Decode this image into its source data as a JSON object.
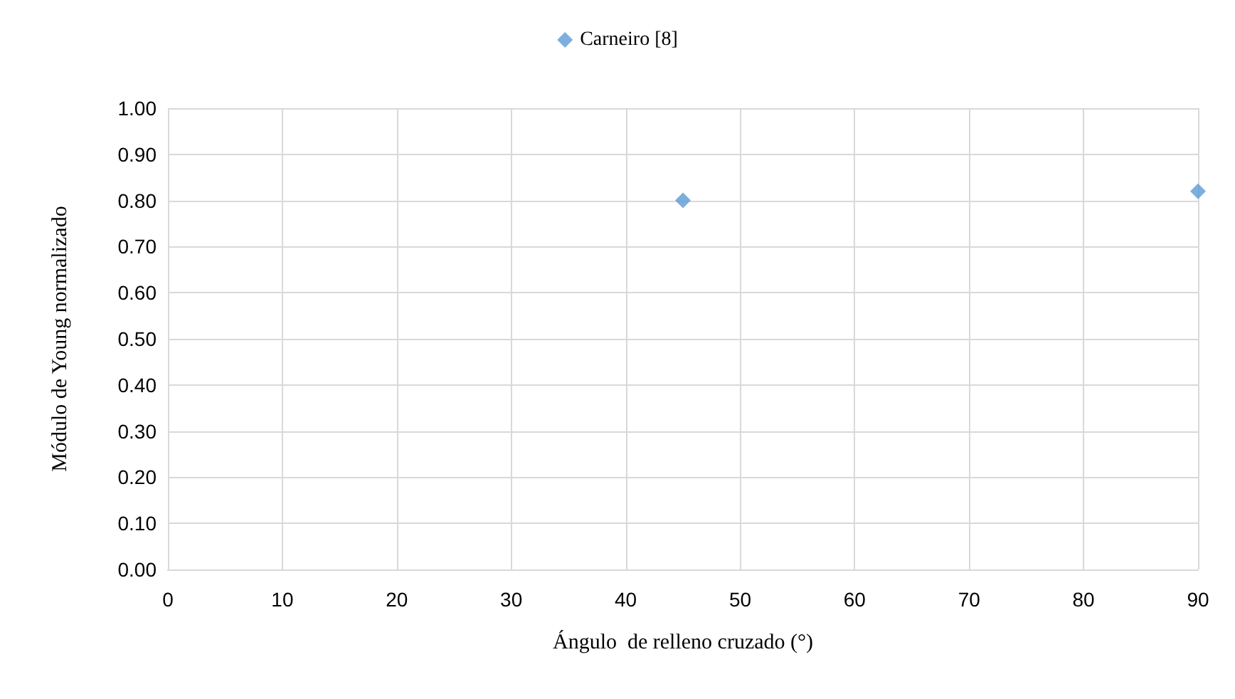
{
  "chart_data": {
    "type": "scatter",
    "xlabel": "Ángulo  de relleno cruzado (°)",
    "ylabel": "Módulo de Young normalizado",
    "x": [
      45,
      90
    ],
    "series": [
      {
        "name": "Carneiro [8]",
        "color": "#5b9bd5",
        "values": [
          0.8,
          0.82
        ]
      }
    ],
    "xlim": [
      0,
      90
    ],
    "xticks": [
      0,
      10,
      20,
      30,
      40,
      50,
      60,
      70,
      80,
      90
    ],
    "ylim": [
      0,
      1
    ],
    "yticks": [
      {
        "value": 0,
        "label": "0.00"
      },
      {
        "value": 0.1,
        "label": "0.10"
      },
      {
        "value": 0.2,
        "label": "0.20"
      },
      {
        "value": 0.3,
        "label": "0.30"
      },
      {
        "value": 0.4,
        "label": "0.40"
      },
      {
        "value": 0.5,
        "label": "0.50"
      },
      {
        "value": 0.6,
        "label": "0.60"
      },
      {
        "value": 0.7,
        "label": "0.70"
      },
      {
        "value": 0.8,
        "label": "0.80"
      },
      {
        "value": 0.9,
        "label": "0.90"
      },
      {
        "value": 1,
        "label": "1.00"
      }
    ],
    "grid": true,
    "legend": "top",
    "marker": "diamond"
  }
}
